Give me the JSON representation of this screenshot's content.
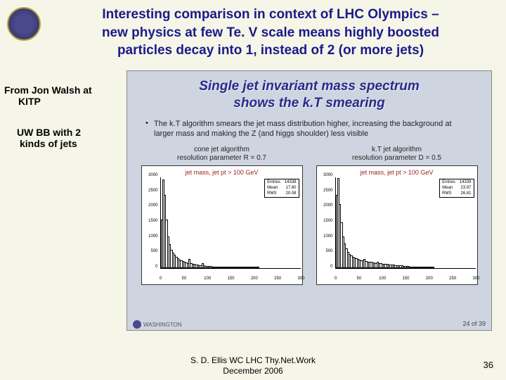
{
  "title_lines": [
    "Interesting comparison in context of LHC Olympics –",
    "new physics at few Te. V scale means highly boosted",
    "particles decay into 1, instead of 2 (or more jets)"
  ],
  "side": {
    "l1": "From Jon Walsh at",
    "l2": "KITP",
    "l3": "UW BB with 2",
    "l4": "kinds of jets"
  },
  "inner": {
    "title_l1": "Single jet invariant mass spectrum",
    "title_l2": "shows the k.T smearing",
    "bullet": "The k.T algorithm smears the jet mass distribution higher, increasing the background at larger mass and making the Z (and higgs shoulder) less visible",
    "footer_page": "24 of 39",
    "footer_org": "WASHINGTON"
  },
  "plot_left": {
    "caption_l1": "cone jet algorithm",
    "caption_l2": "resolution parameter R = 0.7",
    "title": "jet mass, jet pt > 100 GeV",
    "stats": {
      "entries": "14338",
      "mean": "17.60",
      "rms": "20.08"
    },
    "ymax": 3000,
    "yticks": [
      0,
      500,
      1000,
      1500,
      2000,
      2500,
      3000
    ],
    "xticks": [
      0,
      50,
      100,
      150,
      200,
      250,
      300
    ],
    "values": [
      1600,
      2900,
      2400,
      1600,
      1050,
      780,
      600,
      500,
      430,
      380,
      330,
      290,
      260,
      230,
      210,
      190,
      160,
      300,
      160,
      140,
      130,
      120,
      110,
      100,
      95,
      160,
      90,
      80,
      75,
      70,
      65,
      60,
      55,
      50,
      48,
      46,
      44,
      42,
      40,
      38,
      36,
      34,
      32,
      30,
      28,
      26,
      24,
      22,
      20,
      18,
      16,
      15,
      14,
      13,
      12,
      11,
      10,
      9,
      8,
      7
    ]
  },
  "plot_right": {
    "caption_l1": "k.T jet algorithm",
    "caption_l2": "resolution parameter D = 0.5",
    "title": "jet mass, jet pt > 100 GeV",
    "stats": {
      "entries": "14339",
      "mean": "23.97",
      "rms": "26.81"
    },
    "ymax": 3000,
    "yticks": [
      0,
      500,
      1000,
      1500,
      2000,
      2500,
      3000
    ],
    "xticks": [
      0,
      50,
      100,
      150,
      200,
      250,
      300
    ],
    "values": [
      2400,
      2950,
      2100,
      1500,
      1050,
      800,
      640,
      540,
      470,
      420,
      380,
      350,
      320,
      300,
      280,
      260,
      250,
      300,
      230,
      220,
      210,
      200,
      190,
      180,
      170,
      210,
      160,
      155,
      150,
      140,
      135,
      130,
      125,
      120,
      115,
      110,
      105,
      100,
      95,
      90,
      85,
      80,
      75,
      70,
      65,
      60,
      55,
      50,
      45,
      40,
      36,
      32,
      28,
      25,
      22,
      20,
      18,
      16,
      14,
      12
    ]
  },
  "credit": {
    "l1": "S. D. Ellis   WC LHC Thy.Net.Work",
    "l2": "December 2006"
  },
  "page_number": "36"
}
